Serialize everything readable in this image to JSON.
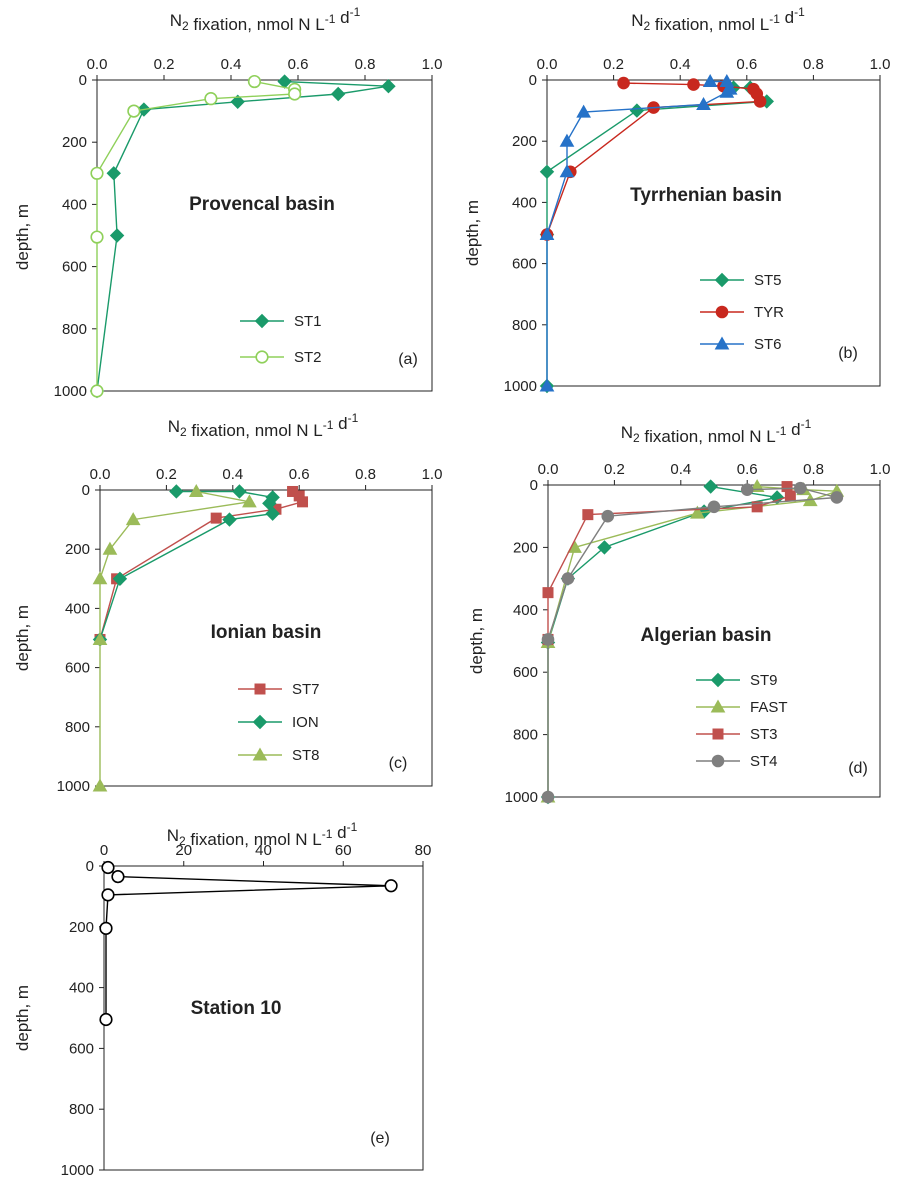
{
  "figure": {
    "background": "#ffffff"
  },
  "chart_data": [
    {
      "id": "a",
      "type": "line",
      "orientation": "depth-profile",
      "title": "Provencal basin",
      "panel_label": "(a)",
      "xlabel": "N2 fixation, nmol N L-1 d-1",
      "ylabel": "depth, m",
      "xlim": [
        0,
        1.0
      ],
      "ylim": [
        1000,
        0
      ],
      "x_ticks": [
        "0.0",
        "0.2",
        "0.4",
        "0.6",
        "0.8",
        "1.0"
      ],
      "y_ticks": [
        "0",
        "200",
        "400",
        "600",
        "800",
        "1000"
      ],
      "legend_position": "bottom-right",
      "grid": false,
      "series": [
        {
          "name": "ST1",
          "color": "#1a9a6a",
          "marker": "diamond",
          "filled": true,
          "points": [
            [
              0.56,
              5
            ],
            [
              0.87,
              20
            ],
            [
              0.72,
              45
            ],
            [
              0.42,
              70
            ],
            [
              0.14,
              95
            ],
            [
              0.05,
              300
            ],
            [
              0.06,
              500
            ],
            [
              0.0,
              1000
            ]
          ]
        },
        {
          "name": "ST2",
          "color": "#8fd05a",
          "marker": "circle",
          "filled": false,
          "points": [
            [
              0.47,
              5
            ],
            [
              0.59,
              30
            ],
            [
              0.59,
              45
            ],
            [
              0.34,
              60
            ],
            [
              0.11,
              100
            ],
            [
              0.0,
              300
            ],
            [
              0.0,
              505
            ],
            [
              0.0,
              1000
            ]
          ]
        }
      ]
    },
    {
      "id": "b",
      "type": "line",
      "orientation": "depth-profile",
      "title": "Tyrrhenian basin",
      "panel_label": "(b)",
      "xlabel": "N2 fixation, nmol L-1 d-1",
      "ylabel": "depth, m",
      "xlim": [
        0,
        1.0
      ],
      "ylim": [
        1000,
        0
      ],
      "x_ticks": [
        "0.0",
        "0.2",
        "0.4",
        "0.6",
        "0.8",
        "1.0"
      ],
      "y_ticks": [
        "0",
        "200",
        "400",
        "600",
        "800",
        "1000"
      ],
      "legend_position": "bottom-right",
      "grid": false,
      "series": [
        {
          "name": "ST5",
          "color": "#1a9a6a",
          "marker": "diamond",
          "filled": true,
          "points": [
            [
              0.56,
              25
            ],
            [
              0.61,
              25
            ],
            [
              0.66,
              70
            ],
            [
              0.27,
              100
            ],
            [
              0.0,
              300
            ],
            [
              0.0,
              505
            ],
            [
              0.0,
              1000
            ]
          ]
        },
        {
          "name": "TYR",
          "color": "#c8281e",
          "marker": "circle",
          "filled": true,
          "points": [
            [
              0.23,
              10
            ],
            [
              0.44,
              15
            ],
            [
              0.53,
              20
            ],
            [
              0.62,
              30
            ],
            [
              0.63,
              45
            ],
            [
              0.64,
              70
            ],
            [
              0.32,
              90
            ],
            [
              0.07,
              300
            ],
            [
              0.0,
              505
            ]
          ]
        },
        {
          "name": "ST6",
          "color": "#2672c8",
          "marker": "triangle",
          "filled": true,
          "points": [
            [
              0.49,
              5
            ],
            [
              0.54,
              5
            ],
            [
              0.55,
              30
            ],
            [
              0.54,
              40
            ],
            [
              0.47,
              80
            ],
            [
              0.11,
              105
            ],
            [
              0.06,
              200
            ],
            [
              0.06,
              300
            ],
            [
              0.0,
              505
            ],
            [
              0.0,
              1000
            ]
          ]
        }
      ]
    },
    {
      "id": "c",
      "type": "line",
      "orientation": "depth-profile",
      "title": "Ionian basin",
      "panel_label": "(c)",
      "xlabel": "N2 fixation, nmol N L-1 d-1",
      "ylabel": "depth, m",
      "xlim": [
        0,
        1.0
      ],
      "ylim": [
        1000,
        0
      ],
      "x_ticks": [
        "0.0",
        "0.2",
        "0.4",
        "0.6",
        "0.8",
        "1.0"
      ],
      "y_ticks": [
        "0",
        "200",
        "400",
        "600",
        "800",
        "1000"
      ],
      "legend_position": "bottom-right",
      "grid": false,
      "series": [
        {
          "name": "ST7",
          "color": "#c0504d",
          "marker": "square",
          "filled": true,
          "points": [
            [
              0.58,
              5
            ],
            [
              0.6,
              20
            ],
            [
              0.61,
              40
            ],
            [
              0.53,
              65
            ],
            [
              0.35,
              95
            ],
            [
              0.05,
              300
            ],
            [
              0.0,
              505
            ]
          ]
        },
        {
          "name": "ION",
          "color": "#1a9a6a",
          "marker": "diamond",
          "filled": true,
          "points": [
            [
              0.23,
              5
            ],
            [
              0.42,
              5
            ],
            [
              0.52,
              25
            ],
            [
              0.51,
              45
            ],
            [
              0.52,
              80
            ],
            [
              0.39,
              100
            ],
            [
              0.06,
              300
            ],
            [
              0.0,
              505
            ]
          ]
        },
        {
          "name": "ST8",
          "color": "#9bbb59",
          "marker": "triangle",
          "filled": true,
          "points": [
            [
              0.29,
              5
            ],
            [
              0.45,
              40
            ],
            [
              0.1,
              100
            ],
            [
              0.03,
              200
            ],
            [
              0.0,
              300
            ],
            [
              0.0,
              505
            ],
            [
              0.0,
              1000
            ]
          ]
        }
      ]
    },
    {
      "id": "d",
      "type": "line",
      "orientation": "depth-profile",
      "title": "Algerian basin",
      "panel_label": "(d)",
      "xlabel": "N2 fixation, nmol N L-1 d-1",
      "ylabel": "depth, m",
      "xlim": [
        0,
        1.0
      ],
      "ylim": [
        1000,
        0
      ],
      "x_ticks": [
        "0.0",
        "0.2",
        "0.4",
        "0.6",
        "0.8",
        "1.0"
      ],
      "y_ticks": [
        "0",
        "200",
        "400",
        "600",
        "800",
        "1000"
      ],
      "legend_position": "bottom-right",
      "grid": false,
      "series": [
        {
          "name": "ST9",
          "color": "#1a9a6a",
          "marker": "diamond",
          "filled": true,
          "points": [
            [
              0.49,
              5
            ],
            [
              0.69,
              40
            ],
            [
              0.47,
              85
            ],
            [
              0.17,
              200
            ],
            [
              0.06,
              300
            ],
            [
              0.0,
              505
            ],
            [
              0.0,
              1000
            ]
          ]
        },
        {
          "name": "FAST",
          "color": "#9bbb59",
          "marker": "triangle",
          "filled": true,
          "points": [
            [
              0.63,
              5
            ],
            [
              0.77,
              15
            ],
            [
              0.87,
              20
            ],
            [
              0.79,
              50
            ],
            [
              0.45,
              90
            ],
            [
              0.08,
              200
            ],
            [
              0.0,
              505
            ],
            [
              0.0,
              1000
            ]
          ]
        },
        {
          "name": "ST3",
          "color": "#c0504d",
          "marker": "square",
          "filled": true,
          "points": [
            [
              0.72,
              5
            ],
            [
              0.73,
              35
            ],
            [
              0.63,
              70
            ],
            [
              0.12,
              95
            ],
            [
              0.0,
              345
            ],
            [
              0.0,
              495
            ]
          ]
        },
        {
          "name": "ST4",
          "color": "#7f7f7f",
          "marker": "circle",
          "filled": true,
          "points": [
            [
              0.6,
              15
            ],
            [
              0.76,
              10
            ],
            [
              0.87,
              40
            ],
            [
              0.5,
              70
            ],
            [
              0.18,
              100
            ],
            [
              0.06,
              300
            ],
            [
              0.0,
              495
            ],
            [
              0.0,
              1000
            ]
          ]
        }
      ]
    },
    {
      "id": "e",
      "type": "line",
      "orientation": "depth-profile",
      "title": "Station 10",
      "panel_label": "(e)",
      "xlabel": "N2 fixation, nmol N L-1 d-1",
      "ylabel": "depth, m",
      "xlim": [
        0,
        80
      ],
      "ylim": [
        1000,
        0
      ],
      "x_ticks": [
        "0",
        "20",
        "40",
        "60",
        "80"
      ],
      "y_ticks": [
        "0",
        "200",
        "400",
        "600",
        "800",
        "1000"
      ],
      "legend_position": "none",
      "grid": false,
      "series": [
        {
          "name": "",
          "color": "#000000",
          "marker": "circle",
          "filled": false,
          "points": [
            [
              1.0,
              5
            ],
            [
              3.5,
              35
            ],
            [
              72.0,
              65
            ],
            [
              1.0,
              95
            ],
            [
              0.5,
              205
            ],
            [
              0.5,
              505
            ]
          ]
        }
      ]
    }
  ]
}
